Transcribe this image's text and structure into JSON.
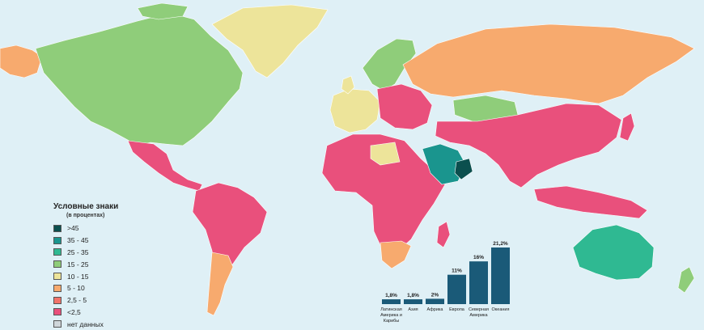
{
  "legend": {
    "title": "Условные знаки",
    "subtitle": "(в процентах)",
    "items": [
      {
        "label": ">45",
        "color": "#0b4f4e"
      },
      {
        "label": "35 - 45",
        "color": "#1a958e"
      },
      {
        "label": "25 - 35",
        "color": "#2fb992"
      },
      {
        "label": "15 - 25",
        "color": "#8fcd7a"
      },
      {
        "label": "10 - 15",
        "color": "#ede49a"
      },
      {
        "label": "5 - 10",
        "color": "#f7aa6e"
      },
      {
        "label": "2,5 - 5",
        "color": "#f2726a"
      },
      {
        "label": "<2,5",
        "color": "#e9507c"
      },
      {
        "label": "нет данных",
        "color": "#cfd6da"
      }
    ]
  },
  "chart_data": {
    "type": "bar",
    "categories": [
      "Латинская Америка и Карибы",
      "Азия",
      "Африка",
      "Европа",
      "Северная Америка",
      "Океания"
    ],
    "values": [
      1.8,
      1.8,
      2,
      11,
      16,
      21.2
    ],
    "value_labels": [
      "1,8%",
      "1,8%",
      "2%",
      "11%",
      "16%",
      "21,2%"
    ],
    "category_lines": [
      [
        "Латинская",
        "Америка и",
        "Карибы"
      ],
      [
        "Азия"
      ],
      [
        "Африка"
      ],
      [
        "Европа"
      ],
      [
        "Северная",
        "Америка"
      ],
      [
        "Океания"
      ]
    ],
    "bar_color": "#1a5a78",
    "ylim": [
      0,
      21.2
    ]
  },
  "map": {
    "ocean_color": "#dff0f6",
    "regions": [
      {
        "name": "greenland",
        "color": "#ede49a"
      },
      {
        "name": "north-america",
        "color": "#8fcd7a"
      },
      {
        "name": "alaska",
        "color": "#f7aa6e"
      },
      {
        "name": "mexico-central-america",
        "color": "#e9507c"
      },
      {
        "name": "south-america",
        "color": "#e9507c"
      },
      {
        "name": "argentina",
        "color": "#f7aa6e"
      },
      {
        "name": "scandinavia",
        "color": "#8fcd7a"
      },
      {
        "name": "western-europe",
        "color": "#ede49a"
      },
      {
        "name": "eastern-europe",
        "color": "#e9507c"
      },
      {
        "name": "russia",
        "color": "#f7aa6e"
      },
      {
        "name": "kazakhstan",
        "color": "#8fcd7a"
      },
      {
        "name": "africa",
        "color": "#e9507c"
      },
      {
        "name": "libya",
        "color": "#ede49a"
      },
      {
        "name": "south-africa",
        "color": "#f7aa6e"
      },
      {
        "name": "madagascar",
        "color": "#e9507c"
      },
      {
        "name": "arabia",
        "color": "#1a958e"
      },
      {
        "name": "oman",
        "color": "#0b4f4e"
      },
      {
        "name": "asia",
        "color": "#e9507c"
      },
      {
        "name": "japan",
        "color": "#e9507c"
      },
      {
        "name": "southeast-asia",
        "color": "#e9507c"
      },
      {
        "name": "australia",
        "color": "#2fb992"
      },
      {
        "name": "new-zealand",
        "color": "#8fcd7a"
      }
    ]
  }
}
